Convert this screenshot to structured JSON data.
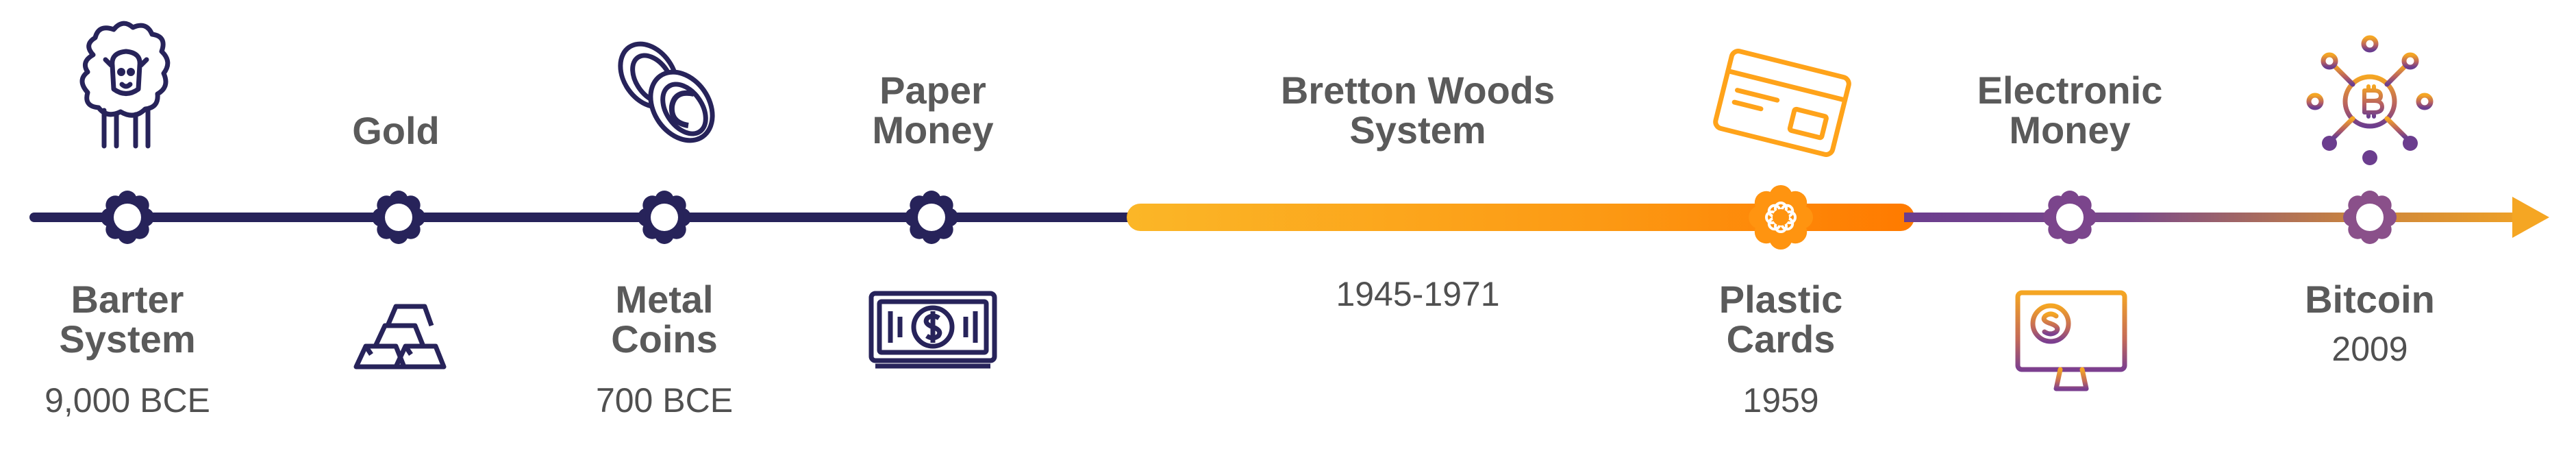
{
  "timeline": {
    "events": [
      {
        "id": "barter-system",
        "name_lines": [
          "Barter",
          "System"
        ],
        "date": "9,000 BCE",
        "icon": "sheep-icon"
      },
      {
        "id": "gold",
        "name_lines": [
          "Gold"
        ],
        "date": "",
        "icon": "gold-bars-icon"
      },
      {
        "id": "metal-coins",
        "name_lines": [
          "Metal",
          "Coins"
        ],
        "date": "700 BCE",
        "icon": "coins-icon"
      },
      {
        "id": "paper-money",
        "name_lines": [
          "Paper",
          "Money"
        ],
        "date": "",
        "icon": "banknote-icon"
      },
      {
        "id": "bretton-woods",
        "name_lines": [
          "Bretton Woods",
          "System"
        ],
        "date": "1945-1971",
        "icon": ""
      },
      {
        "id": "plastic-cards",
        "name_lines": [
          "Plastic",
          "Cards"
        ],
        "date": "1959",
        "icon": "credit-card-icon"
      },
      {
        "id": "electronic-money",
        "name_lines": [
          "Electronic",
          "Money"
        ],
        "date": "",
        "icon": "computer-monitor-dollar-icon"
      },
      {
        "id": "bitcoin",
        "name_lines": [
          "Bitcoin"
        ],
        "date": "2009",
        "icon": "bitcoin-network-icon"
      }
    ],
    "colors": {
      "navy": "#27235a",
      "gold_start": "#fbb627",
      "orange": "#fc8a10",
      "orange_end": "#ff7b00",
      "purple": "#6b3d8e",
      "label_gray": "#5a5a5a"
    }
  }
}
